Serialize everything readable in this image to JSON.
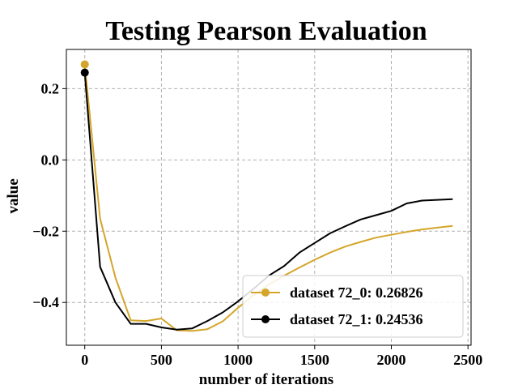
{
  "chart_data": {
    "type": "line",
    "title": "Testing Pearson Evaluation",
    "xlabel": "number of iterations",
    "ylabel": "value",
    "xlim": [
      -120,
      2520
    ],
    "ylim": [
      -0.52,
      0.31
    ],
    "xticks": [
      0,
      500,
      1000,
      1500,
      2000,
      2500
    ],
    "xtick_labels": [
      "0",
      "500",
      "1000",
      "1500",
      "2000",
      "2500"
    ],
    "yticks": [
      -0.4,
      -0.2,
      0.0,
      0.2
    ],
    "ytick_labels": [
      "−0.4",
      "−0.2",
      "0.0",
      "0.2"
    ],
    "grid": true,
    "legend_position": "lower-right",
    "series": [
      {
        "name": "dataset 72_0: 0.26826",
        "color": "#d4a52a",
        "marker_at_first_point": true,
        "x": [
          0,
          100,
          200,
          300,
          400,
          500,
          600,
          700,
          800,
          900,
          1000,
          1100,
          1200,
          1300,
          1400,
          1500,
          1600,
          1700,
          1800,
          1900,
          2000,
          2100,
          2200,
          2300,
          2400
        ],
        "y": [
          0.268,
          -0.165,
          -0.33,
          -0.45,
          -0.452,
          -0.445,
          -0.478,
          -0.48,
          -0.475,
          -0.453,
          -0.415,
          -0.38,
          -0.35,
          -0.325,
          -0.302,
          -0.28,
          -0.26,
          -0.243,
          -0.23,
          -0.218,
          -0.21,
          -0.202,
          -0.195,
          -0.19,
          -0.185
        ]
      },
      {
        "name": "dataset 72_1: 0.24536",
        "color": "#000000",
        "marker_at_first_point": true,
        "x": [
          0,
          100,
          200,
          300,
          400,
          500,
          600,
          700,
          800,
          900,
          1000,
          1100,
          1200,
          1300,
          1400,
          1500,
          1600,
          1700,
          1800,
          1900,
          2000,
          2100,
          2200,
          2300,
          2400
        ],
        "y": [
          0.245,
          -0.3,
          -0.4,
          -0.46,
          -0.46,
          -0.47,
          -0.476,
          -0.473,
          -0.452,
          -0.428,
          -0.397,
          -0.362,
          -0.325,
          -0.298,
          -0.26,
          -0.233,
          -0.206,
          -0.186,
          -0.167,
          -0.155,
          -0.143,
          -0.122,
          -0.114,
          -0.112,
          -0.11
        ]
      }
    ]
  }
}
